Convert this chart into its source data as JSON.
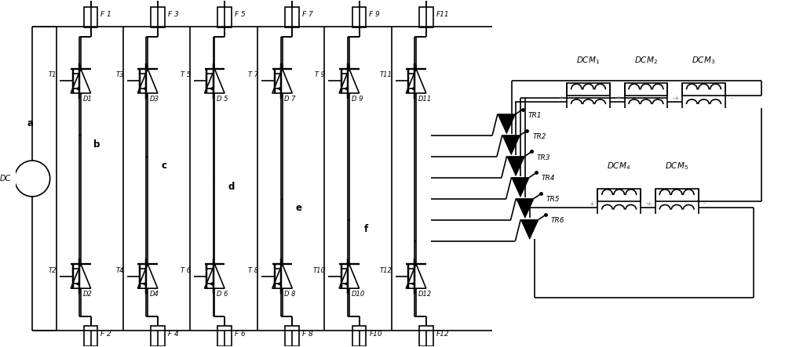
{
  "figsize": [
    10.0,
    4.43
  ],
  "dpi": 100,
  "lw": 1.2,
  "lc": "black",
  "bg": "white",
  "fuse_top": [
    "F 1",
    "F 3",
    "F 5",
    "F 7",
    "F 9",
    "F11"
  ],
  "fuse_bot": [
    "F 2",
    "F 4",
    "F 6",
    "F 8",
    "F10",
    "F12"
  ],
  "T_top": [
    "T1",
    "T3",
    "T 5",
    "T 7",
    "T 9",
    "T11"
  ],
  "T_bot": [
    "T2",
    "T4",
    "T 6",
    "T 8",
    "T10",
    "T12"
  ],
  "D_top": [
    "D1",
    "D3",
    "D 5",
    "D 7",
    "D 9",
    "D11"
  ],
  "D_bot": [
    "D2",
    "D4",
    "D 6",
    "D 8",
    "D10",
    "D12"
  ],
  "bus_labels": [
    "a",
    "b",
    "c",
    "d",
    "e",
    "f"
  ],
  "TR_labels": [
    "TR1",
    "TR2",
    "TR3",
    "TR4",
    "TR5",
    "TR6"
  ],
  "DCM_top_labels": [
    "$DCM_1$",
    "$DCM_2$",
    "$DCM_3$"
  ],
  "DCM_bot_labels": [
    "$DCM_4$",
    "$DCM_5$"
  ]
}
